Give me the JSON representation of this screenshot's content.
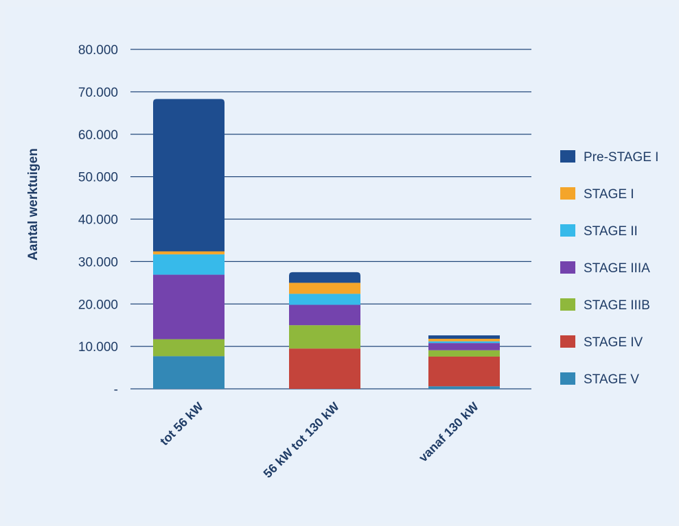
{
  "chart_data": {
    "type": "bar",
    "stacked": true,
    "ylabel": "Aantal werktuigen",
    "xlabel": "",
    "ylim": [
      0,
      80000
    ],
    "yticks": [
      0,
      10000,
      20000,
      30000,
      40000,
      50000,
      60000,
      70000,
      80000
    ],
    "ytick_labels": [
      "-",
      "10.000",
      "20.000",
      "30.000",
      "40.000",
      "50.000",
      "60.000",
      "70.000",
      "80.000"
    ],
    "grid": true,
    "legend_position": "right",
    "categories": [
      "tot 56 kW",
      "56 kW tot 130 kW",
      "vanaf 130 kW"
    ],
    "series": [
      {
        "name": "STAGE V",
        "color": "#3388b6",
        "values": [
          7700,
          0,
          600
        ]
      },
      {
        "name": "STAGE IV",
        "color": "#c4443b",
        "values": [
          0,
          9500,
          7000
        ]
      },
      {
        "name": "STAGE IIIB",
        "color": "#8fb83c",
        "values": [
          4000,
          5500,
          1500
        ]
      },
      {
        "name": "STAGE IIIA",
        "color": "#7443ad",
        "values": [
          15200,
          4800,
          1700
        ]
      },
      {
        "name": "STAGE II",
        "color": "#37baea",
        "values": [
          4800,
          2600,
          400
        ]
      },
      {
        "name": "STAGE I",
        "color": "#f4a52a",
        "values": [
          700,
          2600,
          600
        ]
      },
      {
        "name": "Pre-STAGE I",
        "color": "#1e4d8f",
        "values": [
          35900,
          2500,
          800
        ]
      }
    ],
    "legend_order": [
      "Pre-STAGE I",
      "STAGE I",
      "STAGE II",
      "STAGE IIIA",
      "STAGE IIIB",
      "STAGE IV",
      "STAGE V"
    ]
  }
}
